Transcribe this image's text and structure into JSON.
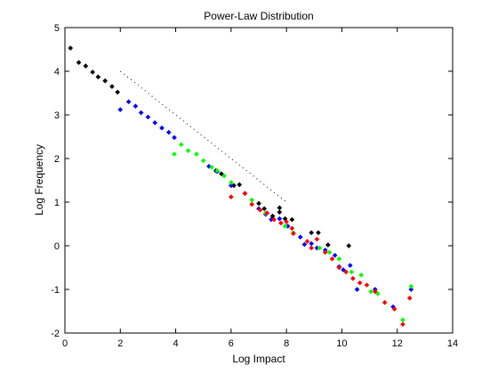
{
  "chart_data": {
    "type": "scatter",
    "title": "Power-Law Distribution",
    "xlabel": "Log Impact",
    "ylabel": "Log Frequency",
    "xlim": [
      0,
      14
    ],
    "ylim": [
      -2,
      5
    ],
    "xticks": [
      0,
      2,
      4,
      6,
      8,
      10,
      12,
      14
    ],
    "yticks": [
      -2,
      -1,
      0,
      1,
      2,
      3,
      4,
      5
    ],
    "grid": false,
    "legend": "none",
    "series": [
      {
        "color": "#000000",
        "marker": "dot",
        "points": [
          [
            0.2,
            4.53
          ],
          [
            0.5,
            4.2
          ],
          [
            0.75,
            4.12
          ],
          [
            1.0,
            3.98
          ],
          [
            1.2,
            3.87
          ],
          [
            1.45,
            3.78
          ],
          [
            1.7,
            3.65
          ],
          [
            1.9,
            3.52
          ],
          [
            5.45,
            1.72
          ],
          [
            5.65,
            1.65
          ],
          [
            6.1,
            1.38
          ],
          [
            6.3,
            1.4
          ],
          [
            7.0,
            0.97
          ],
          [
            7.2,
            0.85
          ],
          [
            7.5,
            0.68
          ],
          [
            7.75,
            0.77
          ],
          [
            7.75,
            0.87
          ],
          [
            7.95,
            0.62
          ],
          [
            8.2,
            0.6
          ],
          [
            8.9,
            0.3
          ],
          [
            9.15,
            0.3
          ],
          [
            9.5,
            0.02
          ],
          [
            10.25,
            0.0
          ]
        ]
      },
      {
        "color": "#0000ff",
        "marker": "dot",
        "points": [
          [
            2.0,
            3.12
          ],
          [
            2.3,
            3.3
          ],
          [
            2.55,
            3.2
          ],
          [
            2.75,
            3.05
          ],
          [
            3.0,
            2.95
          ],
          [
            3.25,
            2.82
          ],
          [
            3.5,
            2.7
          ],
          [
            3.75,
            2.6
          ],
          [
            3.95,
            2.48
          ],
          [
            5.2,
            1.82
          ],
          [
            5.5,
            1.7
          ],
          [
            6.0,
            1.38
          ],
          [
            6.5,
            1.2
          ],
          [
            7.0,
            0.85
          ],
          [
            7.25,
            0.72
          ],
          [
            7.45,
            0.6
          ],
          [
            7.75,
            0.62
          ],
          [
            8.05,
            0.45
          ],
          [
            8.5,
            0.2
          ],
          [
            8.65,
            0.03
          ],
          [
            8.9,
            0.05
          ],
          [
            9.1,
            -0.05
          ],
          [
            9.4,
            -0.1
          ],
          [
            9.75,
            -0.22
          ],
          [
            9.9,
            -0.48
          ],
          [
            10.05,
            -0.55
          ],
          [
            10.3,
            -0.45
          ],
          [
            10.55,
            -1.0
          ],
          [
            11.2,
            -1.0
          ],
          [
            11.85,
            -1.4
          ],
          [
            12.5,
            -1.0
          ]
        ]
      },
      {
        "color": "#00ff00",
        "marker": "dot",
        "points": [
          [
            3.95,
            2.1
          ],
          [
            4.2,
            2.32
          ],
          [
            4.45,
            2.18
          ],
          [
            4.75,
            2.1
          ],
          [
            5.0,
            1.95
          ],
          [
            5.3,
            1.8
          ],
          [
            5.5,
            1.72
          ],
          [
            5.75,
            1.6
          ],
          [
            6.0,
            1.45
          ],
          [
            6.75,
            1.05
          ],
          [
            7.25,
            0.75
          ],
          [
            7.95,
            0.45
          ],
          [
            8.25,
            0.3
          ],
          [
            9.2,
            -0.05
          ],
          [
            9.55,
            -0.15
          ],
          [
            9.9,
            -0.3
          ],
          [
            10.35,
            -0.6
          ],
          [
            10.7,
            -0.67
          ],
          [
            11.05,
            -1.05
          ],
          [
            11.3,
            -1.1
          ],
          [
            12.2,
            -1.7
          ],
          [
            12.5,
            -0.93
          ]
        ]
      },
      {
        "color": "#ff0000",
        "marker": "dot",
        "points": [
          [
            6.0,
            1.12
          ],
          [
            6.5,
            1.2
          ],
          [
            6.75,
            0.95
          ],
          [
            7.05,
            0.82
          ],
          [
            7.3,
            0.75
          ],
          [
            7.55,
            0.6
          ],
          [
            7.8,
            0.52
          ],
          [
            8.0,
            0.55
          ],
          [
            8.2,
            0.4
          ],
          [
            8.25,
            0.28
          ],
          [
            8.75,
            0.1
          ],
          [
            8.9,
            -0.05
          ],
          [
            9.1,
            0.15
          ],
          [
            9.4,
            -0.15
          ],
          [
            9.65,
            -0.3
          ],
          [
            9.9,
            -0.5
          ],
          [
            10.15,
            -0.6
          ],
          [
            10.4,
            -0.75
          ],
          [
            10.65,
            -0.85
          ],
          [
            10.9,
            -0.9
          ],
          [
            11.2,
            -1.05
          ],
          [
            11.55,
            -1.3
          ],
          [
            11.9,
            -1.45
          ],
          [
            12.2,
            -1.8
          ],
          [
            12.45,
            -1.2
          ]
        ]
      }
    ],
    "reference_line": {
      "style": "dotted",
      "color": "#000000",
      "from": [
        2,
        4
      ],
      "to": [
        8,
        1
      ]
    }
  }
}
